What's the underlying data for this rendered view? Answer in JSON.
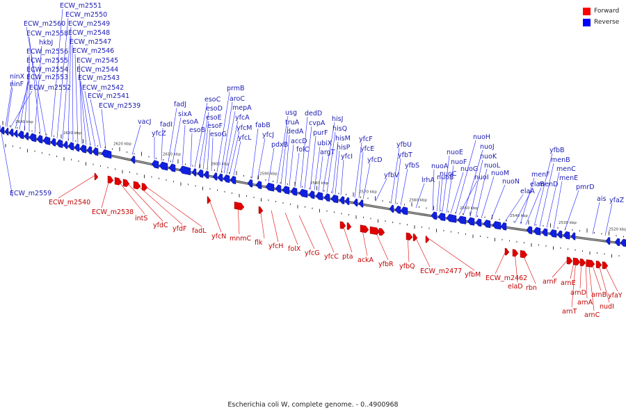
{
  "legend": [
    {
      "label": "Forward",
      "color": "#ff0000"
    },
    {
      "label": "Reverse",
      "color": "#0000ff"
    }
  ],
  "caption": "Escherichia coli W, complete genome. - 0..4900968",
  "colors": {
    "forward": "#e00000",
    "reverse": "#1020e0",
    "forward_text": "#c00000",
    "reverse_text": "#1a1ab0",
    "backbone": "#777777"
  },
  "scale_labels": [
    "2640 kbp",
    "2630 kbp",
    "2620 kbp",
    "2610 kbp",
    "2600 kbp",
    "2590 kbp",
    "2580 kbp",
    "2570 kbp",
    "2560 kbp",
    "2550 kbp",
    "2540 kbp",
    "2530 kbp",
    "2520 kbp"
  ],
  "reverse_genes": [
    "ninX",
    "ninF",
    "ECW_m2552",
    "ECW_m2553",
    "ECW_m2554",
    "ECW_m2555",
    "ECW_m2556",
    "hkbJ",
    "ECW_m2558",
    "ECW_m2560",
    "ECW_m2551",
    "ECW_m2550",
    "ECW_m2549",
    "ECW_m2548",
    "ECW_m2547",
    "ECW_m2546",
    "ECW_m2545",
    "ECW_m2544",
    "ECW_m2543",
    "ECW_m2542",
    "ECW_m2541",
    "ECW_m2539",
    "vacJ",
    "yfcZ",
    "fadI",
    "fadJ",
    "sixA",
    "esoA",
    "esoB",
    "esoC",
    "esoD",
    "esoE",
    "esoF",
    "esoG",
    "prmB",
    "aroC",
    "mepA",
    "yfcA",
    "yfcM",
    "yfcL",
    "fabB",
    "yfcJ",
    "pdxB",
    "usg",
    "truA",
    "dedA",
    "accD",
    "folC",
    "dedD",
    "cvpA",
    "purF",
    "ubiX",
    "argT",
    "hisJ",
    "hisQ",
    "hisM",
    "hisP",
    "yfcI",
    "yfcF",
    "yfcE",
    "yfcD",
    "yfbV",
    "yfbU",
    "yfbT",
    "yfbS",
    "lrhA",
    "nuoA",
    "nuoB",
    "nuoC",
    "nuoE",
    "nuoF",
    "nuoG",
    "nuoH",
    "nuoI",
    "nuoJ",
    "nuoK",
    "nuoL",
    "nuoM",
    "nuoN",
    "elaA",
    "elaB",
    "menF",
    "menD",
    "yfbB",
    "menB",
    "menC",
    "menE",
    "pmrD",
    "ais",
    "yfaZ",
    "ECW_m2559"
  ],
  "forward_genes": [
    "ECW_m2540",
    "ECW_m2538",
    "intS",
    "yfdC",
    "yfdF",
    "fadL",
    "yfcN",
    "mnmC",
    "flk",
    "yfcH",
    "folX",
    "yfcG",
    "yfcC",
    "pta",
    "ackA",
    "yfbR",
    "yfbQ",
    "ECW_m2477",
    "yfbM",
    "ECW_m2462",
    "elaD",
    "rbn",
    "arnF",
    "arnE",
    "arnT",
    "arnD",
    "arnA",
    "arnC",
    "arnB",
    "nudI",
    "yfaY"
  ]
}
